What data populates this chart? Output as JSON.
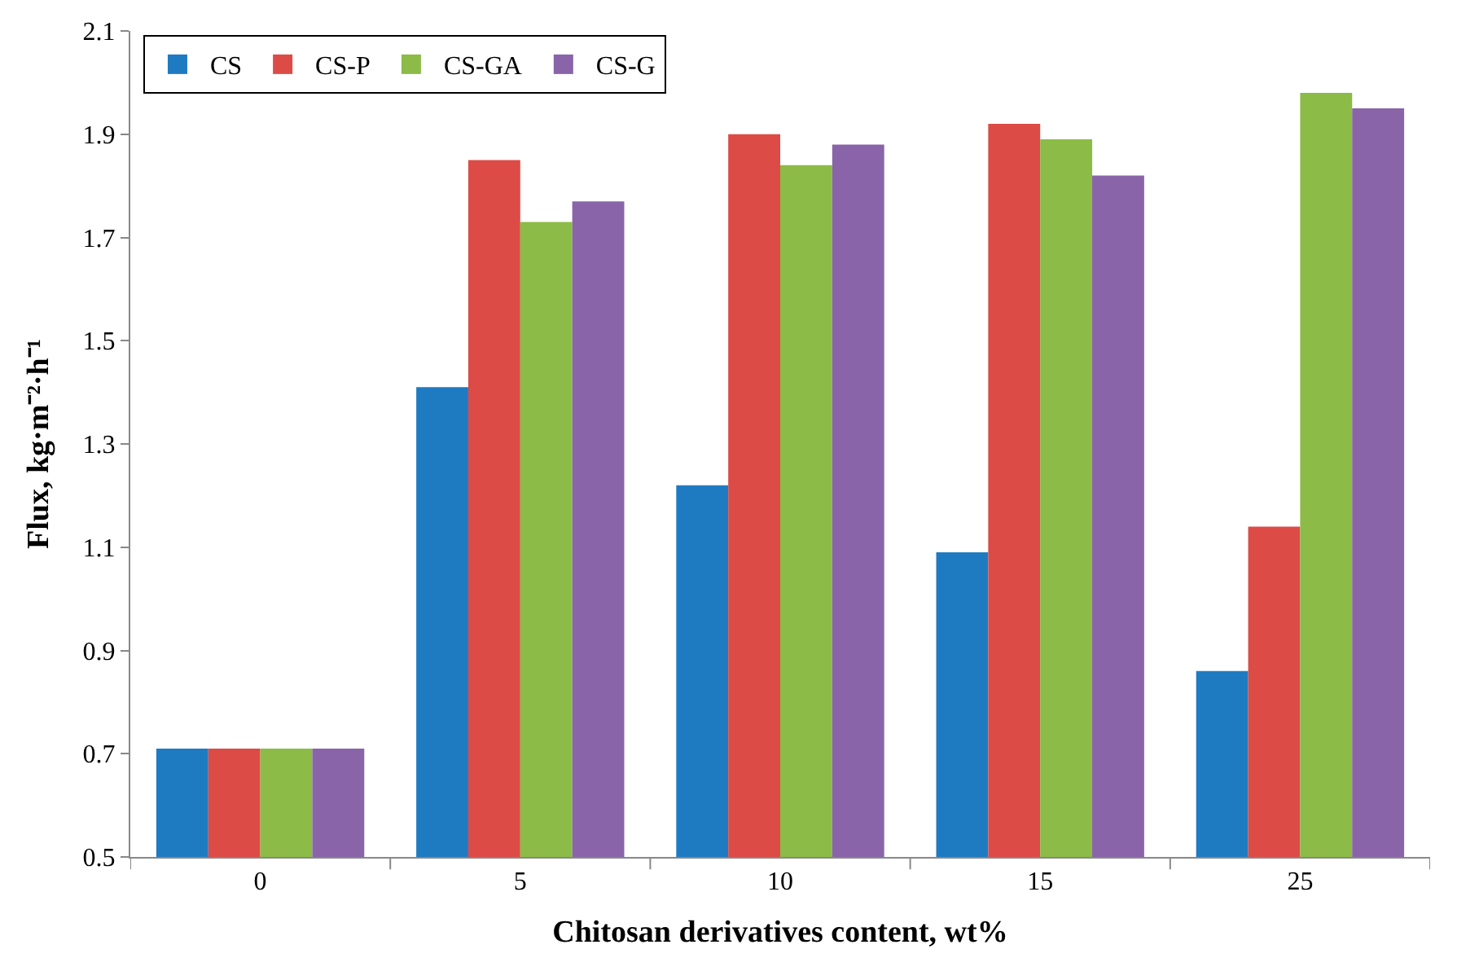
{
  "chart_data": {
    "type": "bar",
    "xlabel": "Chitosan derivatives content, wt%",
    "ylabel": "Flux, kg·m⁻²·h⁻¹",
    "categories": [
      "0",
      "5",
      "10",
      "15",
      "25"
    ],
    "series": [
      {
        "name": "CS",
        "color": "#1f7bc1",
        "values": [
          0.71,
          1.41,
          1.22,
          1.09,
          0.86
        ]
      },
      {
        "name": "CS-P",
        "color": "#dc4b46",
        "values": [
          0.71,
          1.85,
          1.9,
          1.92,
          1.14
        ]
      },
      {
        "name": "CS-GA",
        "color": "#8cbb47",
        "values": [
          0.71,
          1.73,
          1.84,
          1.89,
          1.98
        ]
      },
      {
        "name": "CS-G",
        "color": "#8964a8",
        "values": [
          0.71,
          1.77,
          1.88,
          1.82,
          1.95
        ]
      }
    ],
    "ylim": [
      0.5,
      2.1
    ],
    "yticks": [
      0.5,
      0.7,
      0.9,
      1.1,
      1.3,
      1.5,
      1.7,
      1.9,
      2.1
    ],
    "grid": false,
    "legend": "top left"
  }
}
